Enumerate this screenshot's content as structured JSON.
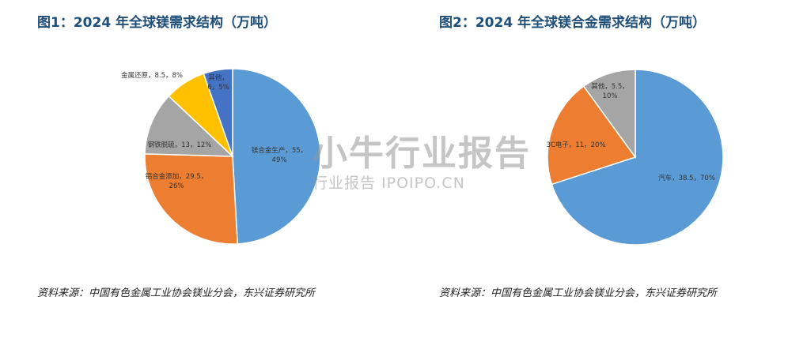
{
  "figures": [
    {
      "title": "图1：2024 年全球镁需求结构（万吨）",
      "source": "资料来源：中国有色金属工业协会镁业分会，东兴证券研究所"
    },
    {
      "title": "图2：2024 年全球镁合金需求结构（万吨）",
      "source": "资料来源：中国有色金属工业协会镁业分会，东兴证券研究所"
    }
  ],
  "watermark": {
    "logo": "小牛行业报告",
    "sub": "行业报告 IPOIPO.CN"
  },
  "chart_data": [
    {
      "type": "pie",
      "title": "图1：2024 年全球镁需求结构（万吨）",
      "slices": [
        {
          "label": "镁合金生产",
          "value": 55,
          "percent": "49%",
          "color": "#5b9bd5",
          "text": "镁合金生产，55，",
          "pct_text": "49%"
        },
        {
          "label": "铝合金添加",
          "value": 29.5,
          "percent": "26%",
          "color": "#ed7d31",
          "text": "铝合金添加，29.5，",
          "pct_text": "26%"
        },
        {
          "label": "钢铁脱硫",
          "value": 13,
          "percent": "12%",
          "color": "#a5a5a5",
          "text": "钢铁脱硫，13，12%",
          "pct_text": ""
        },
        {
          "label": "金属还原",
          "value": 8.5,
          "percent": "8%",
          "color": "#ffc000",
          "text": "金属还原，8.5，8%",
          "pct_text": ""
        },
        {
          "label": "其他",
          "value": 6,
          "percent": "5%",
          "color": "#4472c4",
          "text": "其他，",
          "pct_text": "6，5%"
        }
      ]
    },
    {
      "type": "pie",
      "title": "图2：2024 年全球镁合金需求结构（万吨）",
      "slices": [
        {
          "label": "汽车",
          "value": 38.5,
          "percent": "70%",
          "color": "#5b9bd5",
          "text": "汽车，38.5，70%",
          "pct_text": ""
        },
        {
          "label": "3C电子",
          "value": 11,
          "percent": "20%",
          "color": "#ed7d31",
          "text": "3C电子，11，20%",
          "pct_text": ""
        },
        {
          "label": "其他",
          "value": 5.5,
          "percent": "10%",
          "color": "#a5a5a5",
          "text": "其他，5.5，",
          "pct_text": "10%"
        }
      ]
    }
  ]
}
